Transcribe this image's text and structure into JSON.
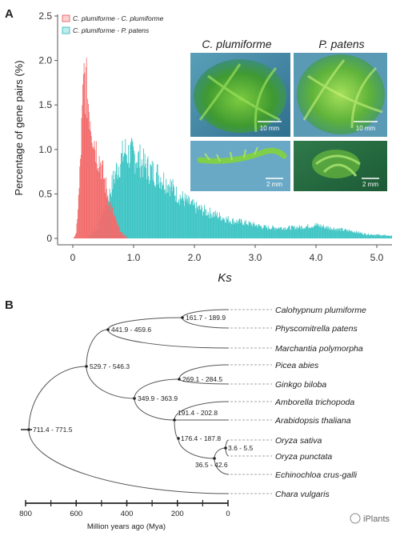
{
  "panel_a": {
    "letter": "A",
    "chart_data": {
      "type": "bar",
      "xlabel": "Ks",
      "ylabel": "Percentage of gene pairs (%)",
      "xlim": [
        -0.25,
        5.25
      ],
      "ylim": [
        0,
        2.5
      ],
      "xticks": [
        "0",
        "1.0",
        "2.0",
        "3.0",
        "4.0",
        "5.0"
      ],
      "yticks": [
        "0",
        "0.5",
        "1.0",
        "1.5",
        "2.0",
        "2.5"
      ],
      "legend_position": "top-left",
      "series": [
        {
          "name": "C. plumiforme - C. plumiforme",
          "color": "#f26b6b",
          "peak_ks": 0.18,
          "points": [
            [
              0.0,
              0.0
            ],
            [
              0.05,
              0.05
            ],
            [
              0.1,
              0.55
            ],
            [
              0.15,
              1.35
            ],
            [
              0.18,
              1.82
            ],
            [
              0.2,
              1.75
            ],
            [
              0.25,
              1.55
            ],
            [
              0.3,
              1.3
            ],
            [
              0.35,
              1.1
            ],
            [
              0.4,
              0.95
            ],
            [
              0.45,
              0.85
            ],
            [
              0.5,
              0.7
            ],
            [
              0.55,
              0.55
            ],
            [
              0.6,
              0.4
            ],
            [
              0.65,
              0.3
            ],
            [
              0.7,
              0.2
            ],
            [
              0.75,
              0.12
            ],
            [
              0.8,
              0.06
            ],
            [
              0.9,
              0.0
            ]
          ]
        },
        {
          "name": "C. plumiforme - P. patens",
          "color": "#3cc4c4",
          "peak_ks": 0.85,
          "points": [
            [
              0.0,
              0.0
            ],
            [
              0.2,
              0.0
            ],
            [
              0.4,
              0.1
            ],
            [
              0.5,
              0.3
            ],
            [
              0.6,
              0.5
            ],
            [
              0.7,
              0.75
            ],
            [
              0.8,
              0.9
            ],
            [
              0.85,
              0.98
            ],
            [
              0.9,
              0.95
            ],
            [
              1.0,
              0.93
            ],
            [
              1.1,
              0.88
            ],
            [
              1.2,
              0.8
            ],
            [
              1.3,
              0.75
            ],
            [
              1.4,
              0.72
            ],
            [
              1.5,
              0.65
            ],
            [
              1.6,
              0.6
            ],
            [
              1.7,
              0.5
            ],
            [
              1.8,
              0.45
            ],
            [
              2.0,
              0.35
            ],
            [
              2.2,
              0.3
            ],
            [
              2.4,
              0.25
            ],
            [
              2.6,
              0.2
            ],
            [
              2.8,
              0.18
            ],
            [
              3.0,
              0.15
            ],
            [
              3.2,
              0.12
            ],
            [
              3.4,
              0.12
            ],
            [
              3.6,
              0.12
            ],
            [
              3.8,
              0.13
            ],
            [
              4.0,
              0.15
            ],
            [
              4.2,
              0.12
            ],
            [
              4.4,
              0.1
            ],
            [
              4.6,
              0.08
            ],
            [
              4.8,
              0.05
            ],
            [
              5.0,
              0.04
            ],
            [
              5.2,
              0.03
            ]
          ]
        }
      ]
    },
    "photos": {
      "label_left": "C. plumiforme",
      "label_right": "P. patens",
      "scale_top_left": "10 mm",
      "scale_top_right": "10 mm",
      "scale_bottom_left": "2 mm",
      "scale_bottom_right": "2 mm"
    }
  },
  "panel_b": {
    "letter": "B",
    "axis_label": "Million years ago (Mya)",
    "axis_ticks": [
      "800",
      "600",
      "400",
      "200",
      "0"
    ],
    "taxa": [
      "Calohypnum plumiforme",
      "Physcomitrella patens",
      "Marchantia polymorpha",
      "Picea abies",
      "Ginkgo biloba",
      "Amborella trichopoda",
      "Arabidopsis thaliana",
      "Oryza sativa",
      "Oryza punctata",
      "Echinochloa crus-galli",
      "Chara vulgaris"
    ],
    "node_labels": {
      "root": "711.4 - 771.5",
      "land_plants": "529.7 - 546.3",
      "bryophytes": "441.9 - 459.6",
      "mosses": "161.7 - 189.9",
      "seed_plants": "349.9 - 363.9",
      "gymnosperms": "269.1 - 284.5",
      "angiosperms": "191.4 - 202.8",
      "angio_inner": "176.4 - 187.8",
      "grasses": "36.5 - 42.6",
      "oryza": "3.6 - 5.5"
    }
  },
  "watermark": "iPlants"
}
